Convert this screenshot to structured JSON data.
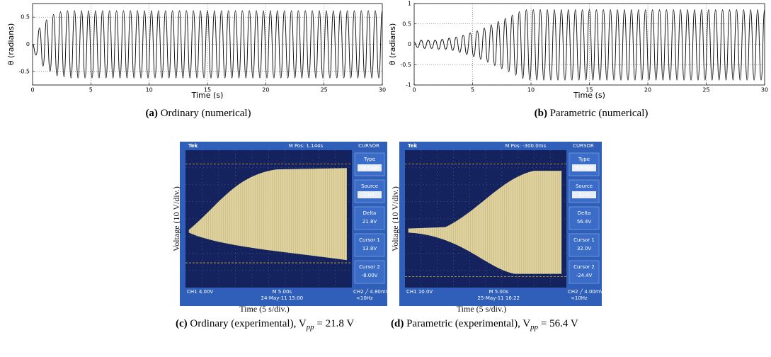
{
  "chart_data": [
    {
      "type": "line",
      "ylabel": "θ (radians)",
      "xlabel": "Time (s)",
      "color": "#000000",
      "grid": true,
      "xlim": [
        0,
        30
      ],
      "xticks": [
        0,
        5,
        10,
        15,
        20,
        25,
        30
      ],
      "ylim": [
        -0.75,
        0.75
      ],
      "yticks": [
        0.5,
        0,
        -0.5
      ],
      "x": [
        0,
        0.3,
        0.6,
        0.9,
        1.2,
        1.5,
        1.8,
        2.1,
        2.4,
        2.7,
        3,
        3.3,
        3.6,
        3.9,
        4.2,
        4.5,
        4.8,
        5.1,
        5.4,
        5.7,
        6,
        6.3,
        6.6,
        6.9,
        7.2,
        7.5,
        7.8,
        8.1,
        8.4,
        8.7,
        9,
        9.3,
        9.6,
        9.9,
        10.2,
        10.5,
        10.8,
        11.1,
        11.4,
        11.7,
        12,
        12.3,
        12.6,
        12.9,
        13.2,
        13.5,
        13.8,
        14.1,
        14.4,
        14.7,
        15,
        15.3,
        15.6,
        15.9,
        16.2,
        16.5,
        16.8,
        17.1,
        17.4,
        17.7,
        18,
        18.3,
        18.6,
        18.9,
        19.2,
        19.5,
        19.8,
        20.1,
        20.4,
        20.7,
        21,
        21.3,
        21.6,
        21.9,
        22.2,
        22.5,
        22.8,
        23.1,
        23.4,
        23.7,
        24,
        24.3,
        24.6,
        24.9,
        25.2,
        25.5,
        25.8,
        26.1,
        26.4,
        26.7,
        27,
        27.3,
        27.6,
        27.9,
        28.2,
        28.5,
        28.8,
        29.1,
        29.4,
        29.7,
        30
      ],
      "values": [
        0,
        -0.2,
        0.3,
        -0.4,
        0.45,
        -0.5,
        0.55,
        -0.58,
        0.6,
        -0.6,
        0.62,
        -0.62,
        0.62,
        -0.62,
        0.62,
        -0.62,
        0.62,
        -0.62,
        0.62,
        -0.62,
        0.62,
        -0.62,
        0.62,
        -0.62,
        0.62,
        -0.62,
        0.62,
        -0.62,
        0.62,
        -0.62,
        0.62,
        -0.62,
        0.62,
        -0.62,
        0.62,
        -0.62,
        0.62,
        -0.62,
        0.62,
        -0.62,
        0.62,
        -0.62,
        0.62,
        -0.62,
        0.62,
        -0.62,
        0.62,
        -0.62,
        0.62,
        -0.62,
        0.62,
        -0.62,
        0.62,
        -0.62,
        0.62,
        -0.62,
        0.62,
        -0.62,
        0.62,
        -0.62,
        0.62,
        -0.62,
        0.62,
        -0.62,
        0.62,
        -0.62,
        0.62,
        -0.62,
        0.62,
        -0.62,
        0.62,
        -0.62,
        0.62,
        -0.62,
        0.62,
        -0.62,
        0.62,
        -0.62,
        0.62,
        -0.62,
        0.62,
        -0.62,
        0.62,
        -0.62,
        0.62,
        -0.62,
        0.62,
        -0.62,
        0.62,
        -0.62,
        0.62,
        -0.62,
        0.62,
        -0.62,
        0.62,
        -0.62,
        0.62,
        -0.62,
        0.62,
        -0.62,
        0.62
      ],
      "caption": {
        "label": "(a)",
        "text": "Ordinary (numerical)"
      }
    },
    {
      "type": "line",
      "ylabel": "θ (radians)",
      "xlabel": "Time (s)",
      "color": "#000000",
      "grid": true,
      "xlim": [
        0,
        30
      ],
      "xticks": [
        0,
        5,
        10,
        15,
        20,
        25,
        30
      ],
      "ylim": [
        -1,
        1
      ],
      "yticks": [
        1,
        0.5,
        0,
        -0.5,
        -1
      ],
      "x": [
        0,
        0.3,
        0.6,
        0.9,
        1.2,
        1.5,
        1.8,
        2.1,
        2.4,
        2.7,
        3,
        3.3,
        3.6,
        3.9,
        4.2,
        4.5,
        4.8,
        5.1,
        5.4,
        5.7,
        6,
        6.3,
        6.6,
        6.9,
        7.2,
        7.5,
        7.8,
        8.1,
        8.4,
        8.7,
        9,
        9.3,
        9.6,
        9.9,
        10.2,
        10.5,
        10.8,
        11.1,
        11.4,
        11.7,
        12,
        12.3,
        12.6,
        12.9,
        13.2,
        13.5,
        13.8,
        14.1,
        14.4,
        14.7,
        15,
        15.3,
        15.6,
        15.9,
        16.2,
        16.5,
        16.8,
        17.1,
        17.4,
        17.7,
        18,
        18.3,
        18.6,
        18.9,
        19.2,
        19.5,
        19.8,
        20.1,
        20.4,
        20.7,
        21,
        21.3,
        21.6,
        21.9,
        22.2,
        22.5,
        22.8,
        23.1,
        23.4,
        23.7,
        24,
        24.3,
        24.6,
        24.9,
        25.2,
        25.5,
        25.8,
        26.1,
        26.4,
        26.7,
        27,
        27.3,
        27.6,
        27.9,
        28.2,
        28.5,
        28.8,
        29.1,
        29.4,
        29.7,
        30
      ],
      "values": [
        0.05,
        -0.08,
        0.1,
        -0.1,
        0.1,
        -0.1,
        0.1,
        -0.12,
        0.12,
        -0.12,
        0.15,
        -0.15,
        0.18,
        -0.2,
        0.22,
        -0.25,
        0.28,
        -0.3,
        0.33,
        -0.37,
        0.4,
        -0.44,
        0.48,
        -0.52,
        0.56,
        -0.6,
        0.64,
        -0.68,
        0.72,
        -0.76,
        0.8,
        -0.84,
        0.85,
        -0.88,
        0.85,
        -0.88,
        0.85,
        -0.88,
        0.85,
        -0.88,
        0.85,
        -0.88,
        0.85,
        -0.88,
        0.85,
        -0.88,
        0.85,
        -0.88,
        0.85,
        -0.88,
        0.85,
        -0.88,
        0.85,
        -0.88,
        0.85,
        -0.88,
        0.85,
        -0.88,
        0.85,
        -0.88,
        0.85,
        -0.88,
        0.85,
        -0.88,
        0.85,
        -0.88,
        0.85,
        -0.88,
        0.85,
        -0.88,
        0.85,
        -0.88,
        0.85,
        -0.88,
        0.85,
        -0.88,
        0.85,
        -0.88,
        0.85,
        -0.88,
        0.85,
        -0.88,
        0.85,
        -0.88,
        0.85,
        -0.88,
        0.85,
        -0.88,
        0.85,
        -0.88,
        0.85,
        -0.88,
        0.85,
        -0.88,
        0.85,
        -0.88,
        0.85,
        -0.88,
        0.85,
        -0.88,
        0.85
      ],
      "caption": {
        "label": "(b)",
        "text": "Parametric (numerical)"
      }
    }
  ],
  "photos": [
    {
      "header": {
        "brand": "Tek",
        "pos": "M Pos: 1.144s",
        "mode": "CURSOR"
      },
      "menu": [
        {
          "title": "Type",
          "value": "Voltage"
        },
        {
          "title": "Source",
          "value": "CH1"
        },
        {
          "title": "Delta",
          "value": "21.8V"
        },
        {
          "title": "Cursor 1",
          "value": "13.8V"
        },
        {
          "title": "Cursor 2",
          "value": "-8.00V"
        }
      ],
      "footer": {
        "ch1": "CH1  4.00V",
        "time": "M 5.00s",
        "ch2": "CH2 ╱ 4.80mV",
        "date": "24-May-11 15:00",
        "freq": "<10Hz"
      },
      "ylabel": "Voltage (10 V/div.)",
      "xlabel": "Time (5 s/div.)",
      "caption": {
        "label": "(c)",
        "text": "Ordinary (experimental), V",
        "sub": "pp",
        "tail": " = 21.8 V"
      }
    },
    {
      "header": {
        "brand": "Tek",
        "pos": "M Pos: -300.0ms",
        "mode": "CURSOR"
      },
      "menu": [
        {
          "title": "Type",
          "value": "Voltage"
        },
        {
          "title": "Source",
          "value": "CH1"
        },
        {
          "title": "Delta",
          "value": "56.4V"
        },
        {
          "title": "Cursor 1",
          "value": "32.0V"
        },
        {
          "title": "Cursor 2",
          "value": "-24.4V"
        }
      ],
      "footer": {
        "ch1": "CH1  10.0V",
        "time": "M 5.00s",
        "ch2": "CH2 ╱ 4.00mV",
        "date": "25-May-11 16:22",
        "freq": "<10Hz"
      },
      "ylabel": "Voltage (10 V/div.)",
      "xlabel": "Time (5 s/div.)",
      "caption": {
        "label": "(d)",
        "text": "Parametric (experimental), V",
        "sub": "pp",
        "tail": " = 56.4 V"
      }
    }
  ]
}
